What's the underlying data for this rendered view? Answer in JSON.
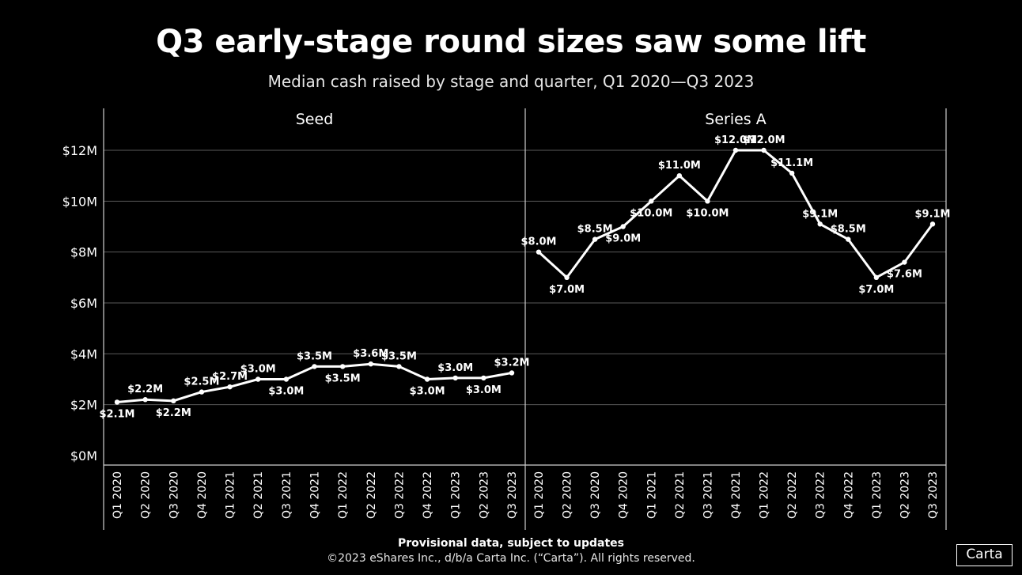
{
  "header": {
    "title": "Q3 early-stage round sizes saw some lift",
    "subtitle": "Median cash raised by stage and quarter, Q1 2020—Q3 2023"
  },
  "footer": {
    "note": "Provisional data, subject to updates",
    "copyright": "©2023 eShares Inc., d/b/a Carta Inc. (“Carta”). All rights reserved.",
    "logo": "Carta"
  },
  "chart_data": {
    "type": "line",
    "title": "Q3 early-stage round sizes saw some lift",
    "subtitle": "Median cash raised by stage and quarter, Q1 2020—Q3 2023",
    "y_ticks": [
      "$0M",
      "$2M",
      "$4M",
      "$6M",
      "$8M",
      "$10M",
      "$12M"
    ],
    "y_tick_values": [
      0,
      2,
      4,
      6,
      8,
      10,
      12
    ],
    "ylim": [
      0,
      13.2
    ],
    "grid": true,
    "line_color": "#ffffff",
    "categories": [
      "Q1 2020",
      "Q2 2020",
      "Q3 2020",
      "Q4 2020",
      "Q1 2021",
      "Q2 2021",
      "Q3 2021",
      "Q4 2021",
      "Q1 2022",
      "Q2 2022",
      "Q3 2022",
      "Q4 2022",
      "Q1 2023",
      "Q2 2023",
      "Q3 2023"
    ],
    "panels": [
      {
        "name": "Seed",
        "values": [
          2.1,
          2.2,
          2.15,
          2.5,
          2.7,
          3.0,
          3.0,
          3.5,
          3.5,
          3.6,
          3.5,
          3.0,
          3.05,
          3.05,
          3.25
        ],
        "labels": [
          "$2.1M",
          "$2.2M",
          "$2.2M",
          "$2.5M",
          "$2.7M",
          "$3.0M",
          "$3.0M",
          "$3.5M",
          "$3.5M",
          "$3.6M",
          "$3.5M",
          "$3.0M",
          "$3.0M",
          "$3.0M",
          "$3.2M"
        ]
      },
      {
        "name": "Series A",
        "values": [
          8.0,
          7.0,
          8.5,
          9.0,
          10.0,
          11.0,
          10.0,
          12.0,
          12.0,
          11.1,
          9.1,
          8.5,
          7.0,
          7.6,
          9.1
        ],
        "labels": [
          "$8.0M",
          "$7.0M",
          "$8.5M",
          "$9.0M",
          "$10.0M",
          "$11.0M",
          "$10.0M",
          "$12.0M",
          "$12.0M",
          "$11.1M",
          "$9.1M",
          "$8.5M",
          "$7.0M",
          "$7.6M",
          "$9.1M"
        ]
      }
    ]
  }
}
